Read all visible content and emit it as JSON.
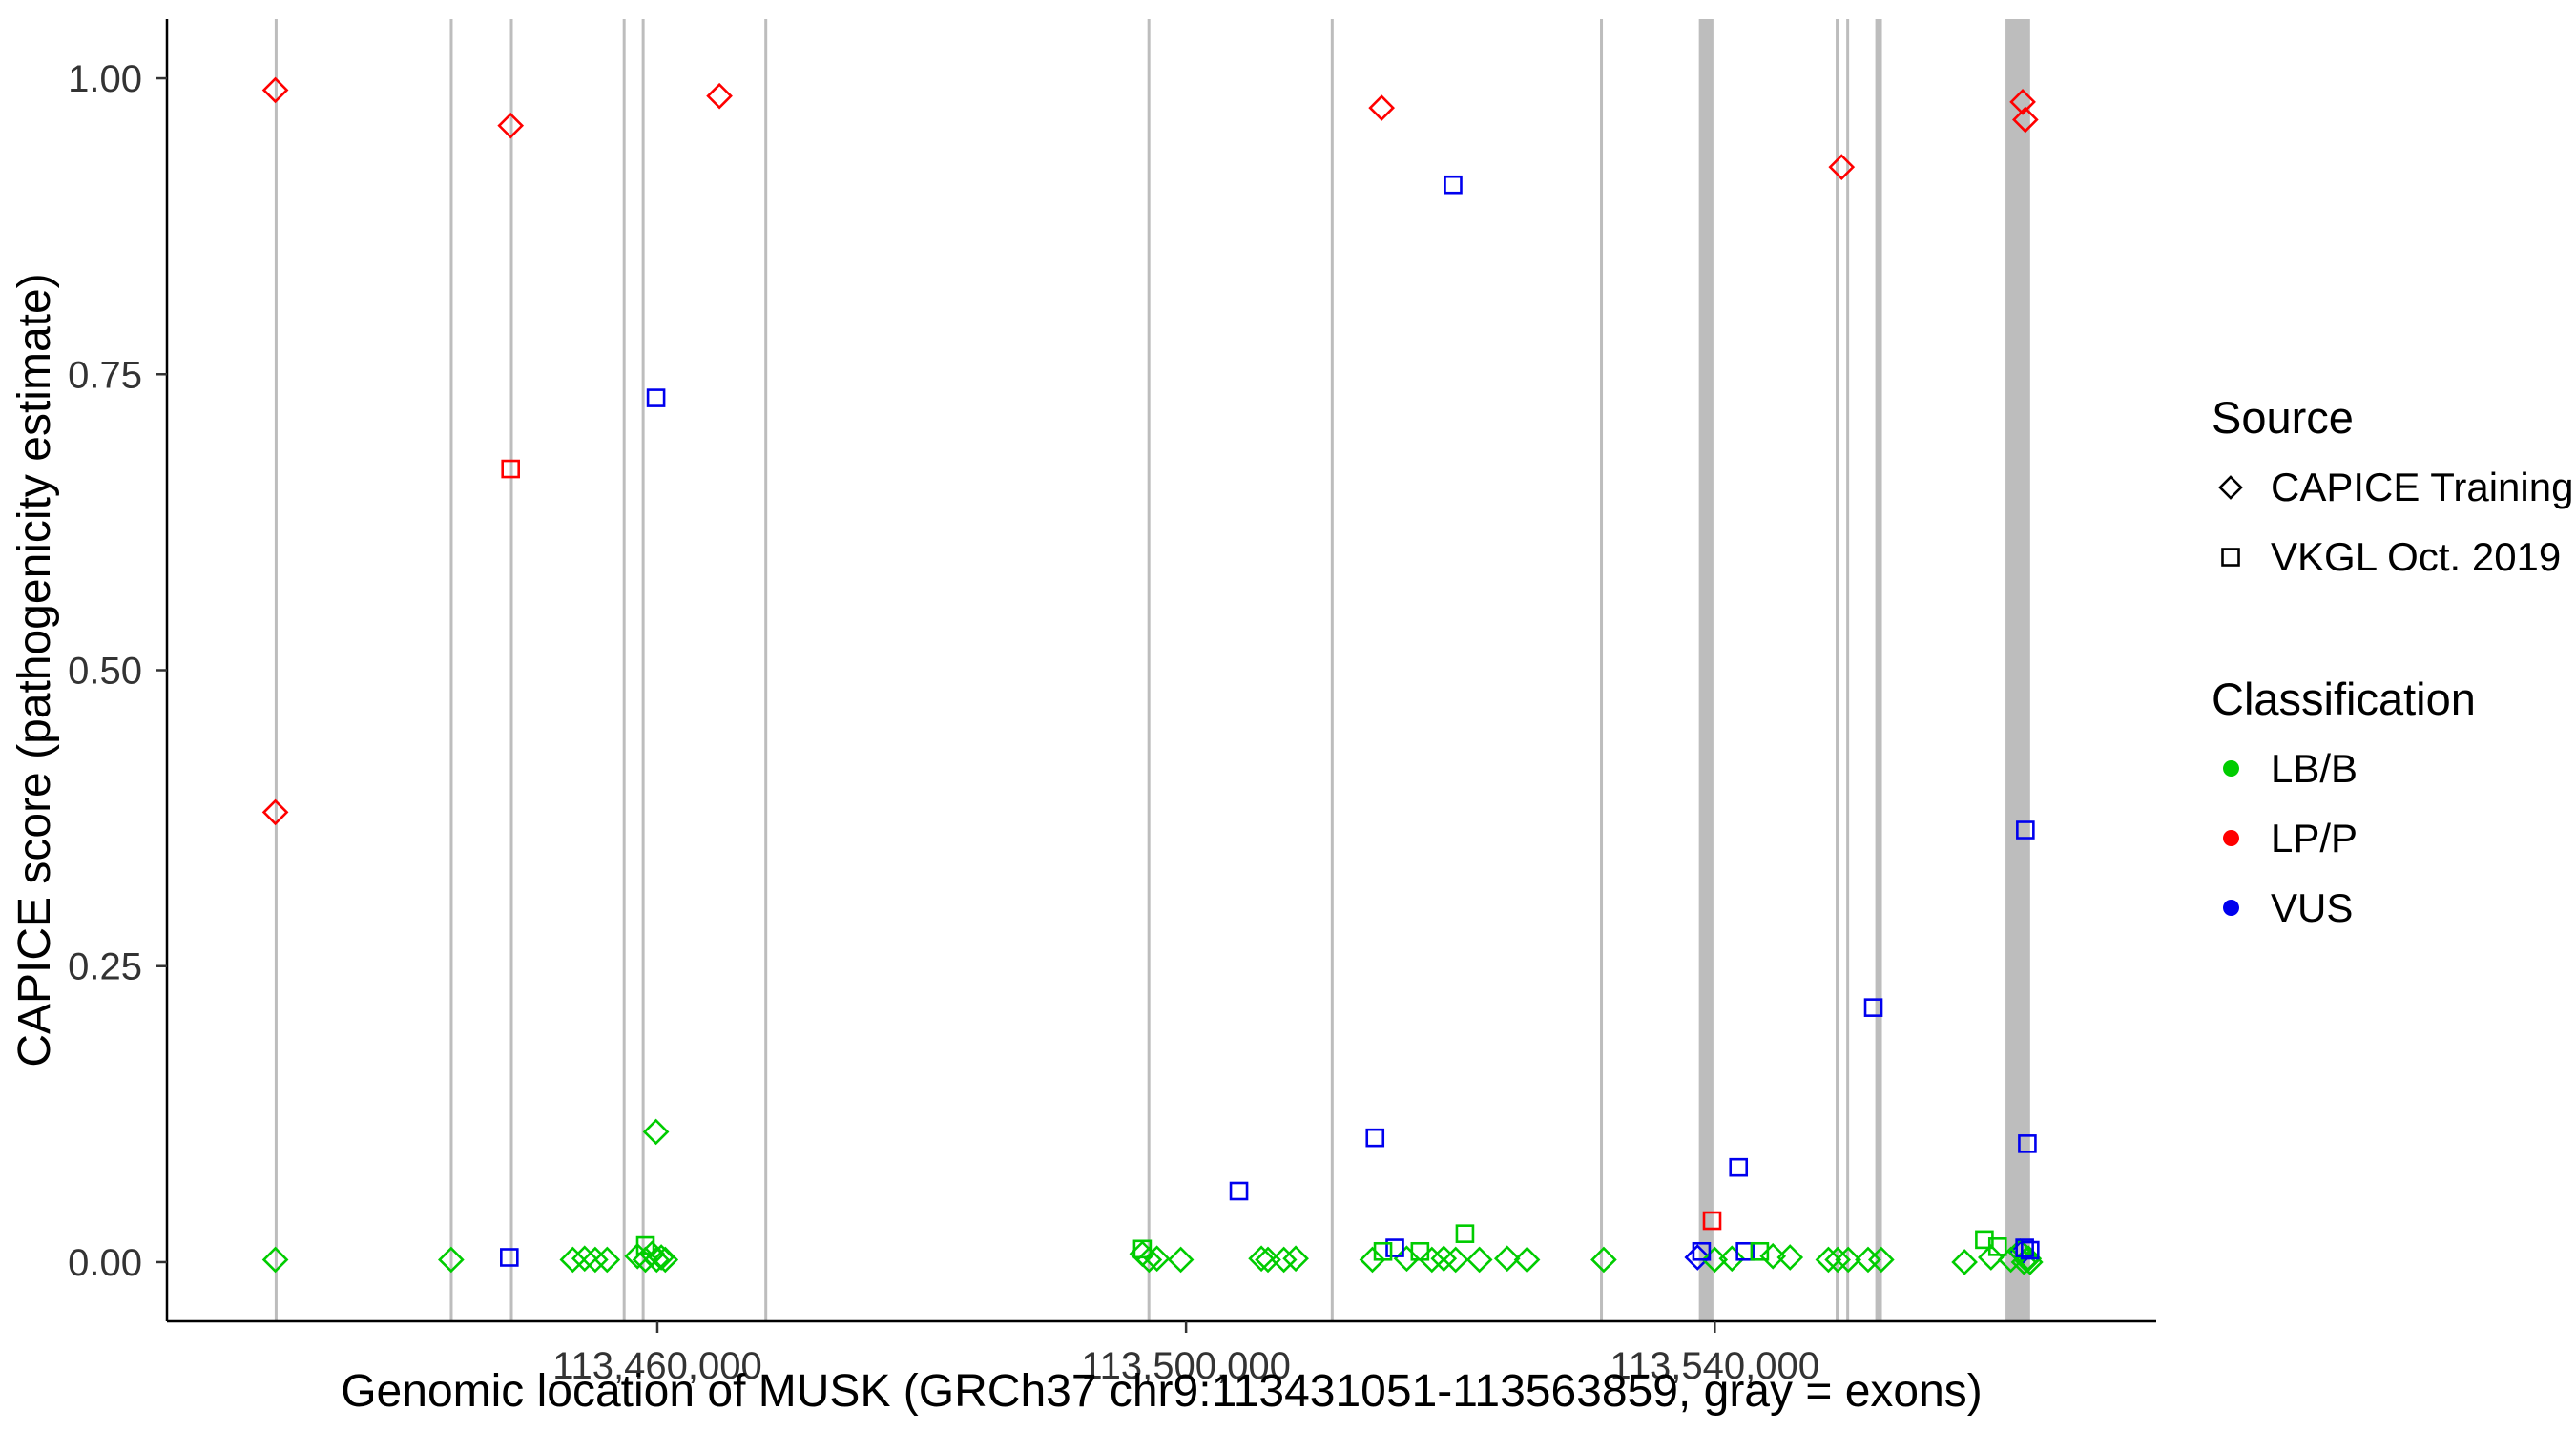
{
  "chart_data": {
    "type": "scatter",
    "title": "",
    "xlabel": "Genomic location of MUSK (GRCh37 chr9:113431051-113563859, gray = exons)",
    "ylabel": "CAPICE score (pathogenicity estimate)",
    "xlim": [
      113422900,
      113573400
    ],
    "ylim": [
      -0.05,
      1.05
    ],
    "grid": "off",
    "legend_position": "right",
    "x_ticks": [
      {
        "value": 113460000,
        "label": "113,460,000"
      },
      {
        "value": 113500000,
        "label": "113,500,000"
      },
      {
        "value": 113540000,
        "label": "113,540,000"
      }
    ],
    "y_ticks": [
      {
        "value": 0.0,
        "label": "0.00"
      },
      {
        "value": 0.25,
        "label": "0.25"
      },
      {
        "value": 0.5,
        "label": "0.50"
      },
      {
        "value": 0.75,
        "label": "0.75"
      },
      {
        "value": 1.0,
        "label": "1.00"
      }
    ],
    "exons": [
      [
        113431051,
        113431250
      ],
      [
        113444300,
        113444480
      ],
      [
        113448850,
        113449030
      ],
      [
        113457380,
        113457560
      ],
      [
        113458820,
        113459000
      ],
      [
        113468100,
        113468280
      ],
      [
        113497080,
        113497260
      ],
      [
        113510950,
        113511130
      ],
      [
        113531320,
        113531500
      ],
      [
        113538800,
        113539900
      ],
      [
        113549150,
        113549330
      ],
      [
        113549950,
        113550130
      ],
      [
        113552150,
        113552650
      ],
      [
        113562000,
        113563859
      ]
    ],
    "series": [
      {
        "name": "CAPICE Training",
        "marker": "diamond",
        "points": [
          [
            113431100,
            0.99,
            "LP/P"
          ],
          [
            113431100,
            0.38,
            "LP/P"
          ],
          [
            113448900,
            0.96,
            "LP/P"
          ],
          [
            113464700,
            0.985,
            "LP/P"
          ],
          [
            113514800,
            0.975,
            "LP/P"
          ],
          [
            113549600,
            0.925,
            "LP/P"
          ],
          [
            113563300,
            0.98,
            "LP/P"
          ],
          [
            113563500,
            0.965,
            "LP/P"
          ],
          [
            113538700,
            0.004,
            "VUS"
          ],
          [
            113563200,
            0.008,
            "VUS"
          ],
          [
            113431100,
            0.002,
            "LB/B"
          ],
          [
            113444400,
            0.002,
            "LB/B"
          ],
          [
            113453600,
            0.002,
            "LB/B"
          ],
          [
            113454500,
            0.003,
            "LB/B"
          ],
          [
            113455300,
            0.002,
            "LB/B"
          ],
          [
            113456200,
            0.002,
            "LB/B"
          ],
          [
            113458500,
            0.005,
            "LB/B"
          ],
          [
            113459100,
            0.002,
            "LB/B"
          ],
          [
            113459600,
            0.007,
            "LB/B"
          ],
          [
            113459900,
            0.11,
            "LB/B"
          ],
          [
            113459950,
            0.002,
            "LB/B"
          ],
          [
            113460300,
            0.004,
            "LB/B"
          ],
          [
            113460600,
            0.002,
            "LB/B"
          ],
          [
            113496700,
            0.007,
            "LB/B"
          ],
          [
            113497200,
            0.002,
            "LB/B"
          ],
          [
            113497800,
            0.003,
            "LB/B"
          ],
          [
            113499600,
            0.002,
            "LB/B"
          ],
          [
            113505700,
            0.003,
            "LB/B"
          ],
          [
            113506200,
            0.002,
            "LB/B"
          ],
          [
            113507400,
            0.002,
            "LB/B"
          ],
          [
            113508300,
            0.003,
            "LB/B"
          ],
          [
            113514100,
            0.002,
            "LB/B"
          ],
          [
            113516700,
            0.003,
            "LB/B"
          ],
          [
            113518600,
            0.002,
            "LB/B"
          ],
          [
            113519500,
            0.003,
            "LB/B"
          ],
          [
            113520400,
            0.002,
            "LB/B"
          ],
          [
            113522200,
            0.002,
            "LB/B"
          ],
          [
            113524300,
            0.003,
            "LB/B"
          ],
          [
            113525800,
            0.002,
            "LB/B"
          ],
          [
            113531600,
            0.002,
            "LB/B"
          ],
          [
            113540000,
            0.002,
            "LB/B"
          ],
          [
            113541300,
            0.003,
            "LB/B"
          ],
          [
            113544400,
            0.005,
            "LB/B"
          ],
          [
            113545700,
            0.004,
            "LB/B"
          ],
          [
            113548600,
            0.002,
            "LB/B"
          ],
          [
            113549300,
            0.002,
            "LB/B"
          ],
          [
            113550100,
            0.002,
            "LB/B"
          ],
          [
            113551600,
            0.002,
            "LB/B"
          ],
          [
            113552600,
            0.002,
            "LB/B"
          ],
          [
            113558900,
            0.0,
            "LB/B"
          ],
          [
            113560900,
            0.004,
            "LB/B"
          ],
          [
            113562400,
            0.002,
            "LB/B"
          ],
          [
            113563100,
            0.009,
            "LB/B"
          ],
          [
            113563400,
            0.0,
            "LB/B"
          ],
          [
            113563600,
            0.002,
            "LB/B"
          ],
          [
            113563750,
            0.003,
            "LB/B"
          ],
          [
            113563859,
            0.0,
            "LB/B"
          ]
        ]
      },
      {
        "name": "VKGL Oct. 2019",
        "marker": "square",
        "points": [
          [
            113448900,
            0.67,
            "LP/P"
          ],
          [
            113539800,
            0.035,
            "LP/P"
          ],
          [
            113448800,
            0.004,
            "VUS"
          ],
          [
            113459900,
            0.73,
            "VUS"
          ],
          [
            113504000,
            0.06,
            "VUS"
          ],
          [
            113514300,
            0.105,
            "VUS"
          ],
          [
            113515800,
            0.012,
            "VUS"
          ],
          [
            113520200,
            0.91,
            "VUS"
          ],
          [
            113539000,
            0.009,
            "VUS"
          ],
          [
            113541800,
            0.08,
            "VUS"
          ],
          [
            113542300,
            0.009,
            "VUS"
          ],
          [
            113552000,
            0.215,
            "VUS"
          ],
          [
            113563500,
            0.365,
            "VUS"
          ],
          [
            113563650,
            0.1,
            "VUS"
          ],
          [
            113563450,
            0.012,
            "VUS"
          ],
          [
            113563859,
            0.01,
            "VUS"
          ],
          [
            113459100,
            0.014,
            "LB/B"
          ],
          [
            113496700,
            0.011,
            "LB/B"
          ],
          [
            113514900,
            0.009,
            "LB/B"
          ],
          [
            113517700,
            0.009,
            "LB/B"
          ],
          [
            113521100,
            0.024,
            "LB/B"
          ],
          [
            113543400,
            0.009,
            "LB/B"
          ],
          [
            113560400,
            0.019,
            "LB/B"
          ],
          [
            113561400,
            0.013,
            "LB/B"
          ]
        ]
      }
    ]
  },
  "legend": {
    "source": {
      "title": "Source",
      "items": [
        {
          "label": "CAPICE Training",
          "marker": "diamond"
        },
        {
          "label": "VKGL Oct. 2019",
          "marker": "square"
        }
      ]
    },
    "classification": {
      "title": "Classification",
      "items": [
        {
          "label": "LB/B",
          "color_key": "LB/B"
        },
        {
          "label": "LP/P",
          "color_key": "LP/P"
        },
        {
          "label": "VUS",
          "color_key": "VUS"
        }
      ]
    }
  },
  "class_colors": {
    "LB/B": "#00CC00",
    "LP/P": "#FF0000",
    "VUS": "#0000EE"
  },
  "colors": {
    "exon": "#BDBDBD",
    "axis": "#000000",
    "tick_text": "#333333",
    "title_text": "#000000",
    "background": "#FFFFFF"
  }
}
